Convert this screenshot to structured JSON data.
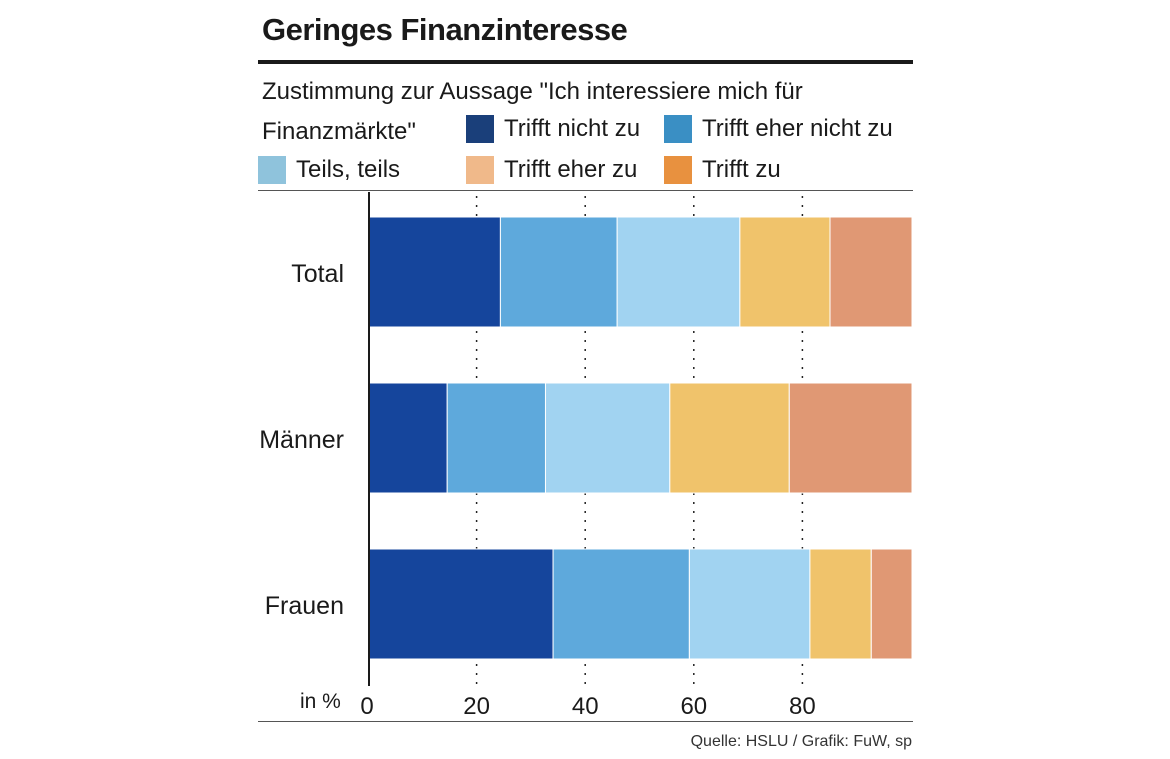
{
  "title": "Geringes Finanzinteresse",
  "subtitle": "Zustimmung zur Aussage \"Ich interessiere mich für Finanzmärkte\"",
  "source": "Quelle: HSLU / Grafik: FuW, sp",
  "unit_label": "in %",
  "legend": [
    {
      "label": "Trifft nicht zu",
      "color": "#1a3f7a"
    },
    {
      "label": "Trifft eher nicht zu",
      "color": "#3a8fc4"
    },
    {
      "label": "Teils, teils",
      "color": "#8fc3dc"
    },
    {
      "label": "Trifft eher zu",
      "color": "#f0b98a"
    },
    {
      "label": "Trifft  zu",
      "color": "#e8913f"
    }
  ],
  "chart_data": {
    "type": "bar",
    "orientation": "horizontal",
    "stacked": true,
    "categories": [
      "Total",
      "Männer",
      "Frauen"
    ],
    "series": [
      {
        "name": "Trifft nicht zu",
        "color": "#15459c",
        "values": [
          24.2,
          14.4,
          33.9
        ]
      },
      {
        "name": "Trifft eher nicht zu",
        "color": "#5ea9dc",
        "values": [
          21.5,
          18.1,
          25.1
        ]
      },
      {
        "name": "Teils, teils",
        "color": "#a1d3f1",
        "values": [
          22.6,
          22.9,
          22.2
        ]
      },
      {
        "name": "Trifft eher zu",
        "color": "#f0c36b",
        "values": [
          16.6,
          22.0,
          11.3
        ]
      },
      {
        "name": "Trifft  zu",
        "color": "#e09874",
        "values": [
          15.1,
          22.6,
          7.5
        ]
      }
    ],
    "xticks": [
      0,
      20,
      40,
      60,
      80
    ],
    "xlim": [
      0,
      100
    ],
    "grid": "dotted vertical"
  }
}
